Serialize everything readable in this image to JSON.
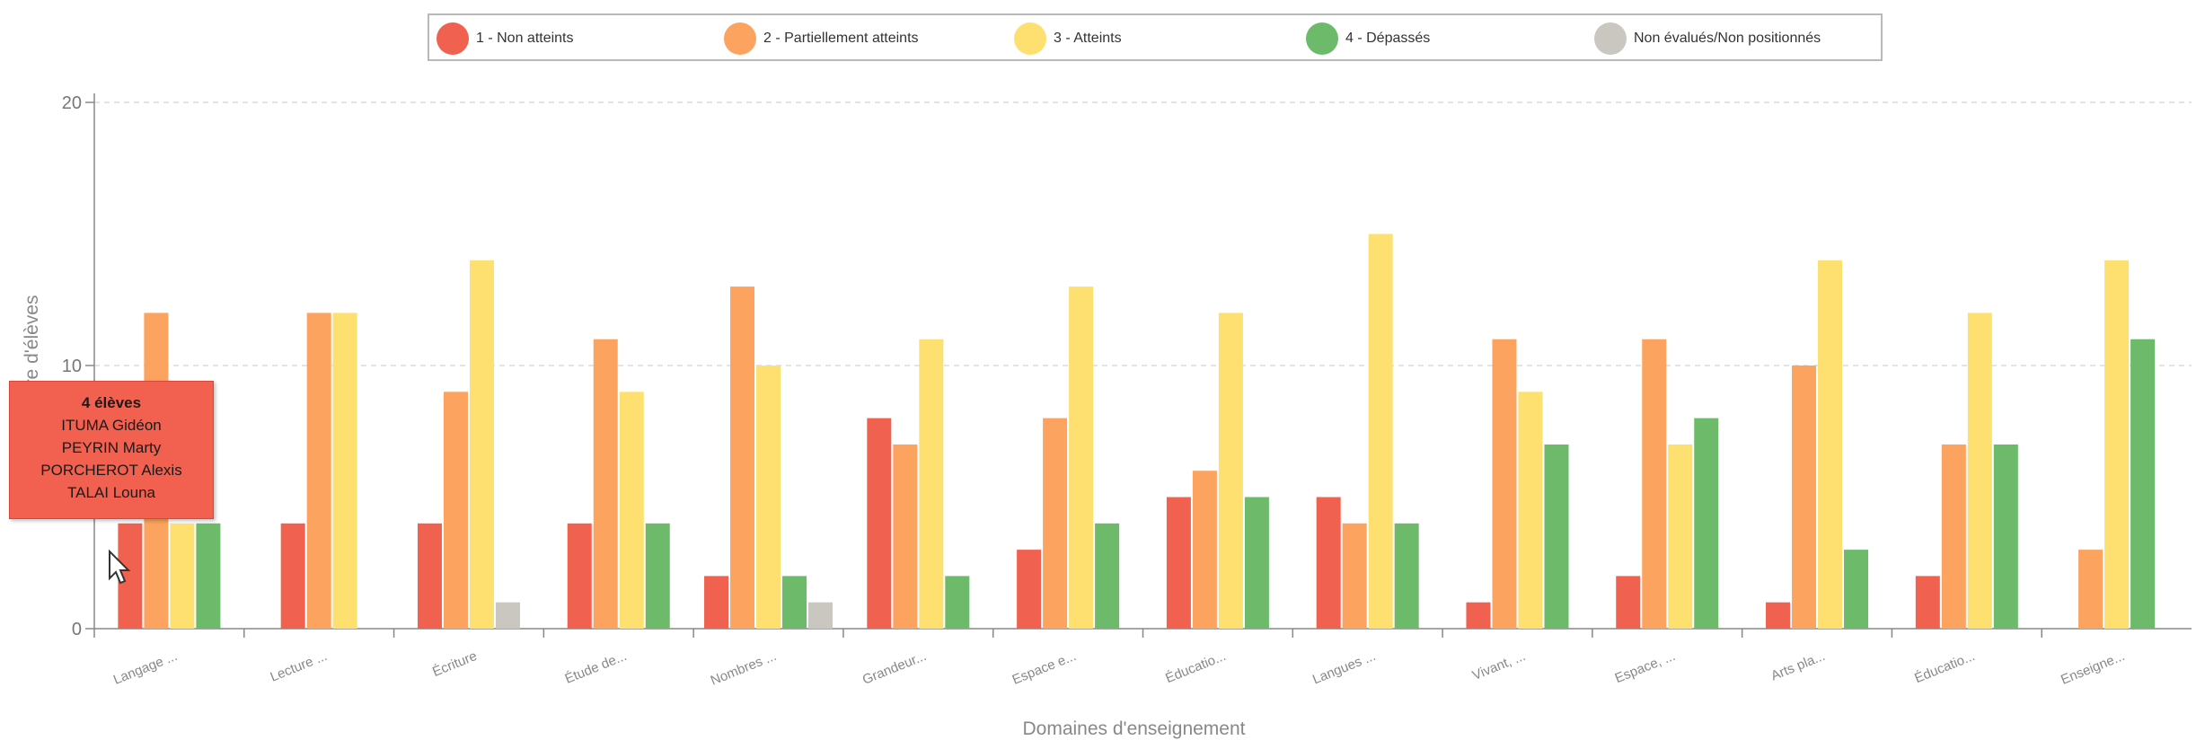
{
  "legend": {
    "items": [
      {
        "label": "1 - Non atteints",
        "color": "#f0614f"
      },
      {
        "label": "2 - Partiellement atteints",
        "color": "#fba35f"
      },
      {
        "label": "3 - Atteints",
        "color": "#fde070"
      },
      {
        "label": "4 - Dépassés",
        "color": "#6dba6b"
      },
      {
        "label": "Non évalués/Non positionnés",
        "color": "#c9c7c0"
      }
    ]
  },
  "tooltip": {
    "title": "4 élèves",
    "names": [
      "ITUMA Gidéon",
      "PEYRIN Marty",
      "PORCHEROT Alexis",
      "TALAI Louna"
    ]
  },
  "chart_data": {
    "type": "bar",
    "xlabel": "Domaines d'enseignement",
    "ylabel": "Nombre d'élèves",
    "ylim": [
      0,
      20
    ],
    "yticks": [
      0,
      10,
      20
    ],
    "grid": true,
    "legend_position": "top",
    "categories": [
      "Langage ...",
      "Lecture ...",
      "Écriture",
      "Étude de...",
      "Nombres ...",
      "Grandeur...",
      "Espace e...",
      "Éducatio...",
      "Langues ...",
      "Vivant, ...",
      "Espace, ...",
      "Arts pla...",
      "Éducatio...",
      "Enseigne..."
    ],
    "series": [
      {
        "name": "1 - Non atteints",
        "color": "#f0614f",
        "values": [
          4,
          4,
          4,
          4,
          2,
          8,
          3,
          5,
          5,
          1,
          2,
          1,
          2,
          0
        ]
      },
      {
        "name": "2 - Partiellement atteints",
        "color": "#fba35f",
        "values": [
          12,
          12,
          9,
          11,
          13,
          7,
          8,
          6,
          4,
          11,
          11,
          10,
          7,
          3
        ]
      },
      {
        "name": "3 - Atteints",
        "color": "#fde070",
        "values": [
          4,
          12,
          14,
          9,
          10,
          11,
          13,
          12,
          15,
          9,
          7,
          14,
          12,
          14
        ]
      },
      {
        "name": "4 - Dépassés",
        "color": "#6dba6b",
        "values": [
          4,
          0,
          0,
          4,
          2,
          2,
          4,
          5,
          4,
          7,
          8,
          3,
          7,
          11
        ]
      },
      {
        "name": "Non évalués/Non positionnés",
        "color": "#c9c7c0",
        "values": [
          0,
          0,
          1,
          0,
          1,
          0,
          0,
          0,
          0,
          0,
          0,
          0,
          0,
          0
        ]
      }
    ]
  }
}
